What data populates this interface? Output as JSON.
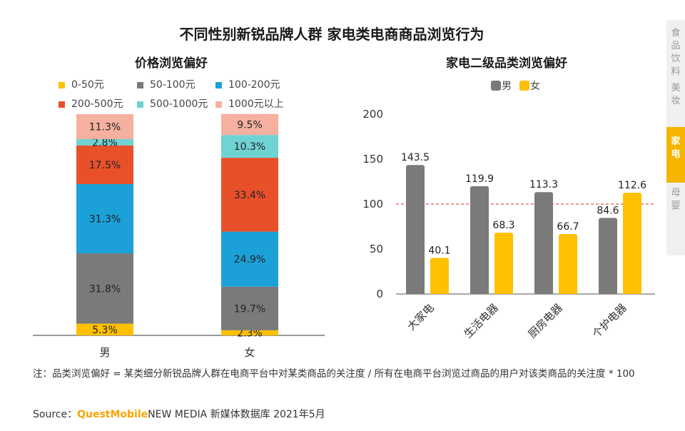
{
  "title": "不同性别新锐品牌人群 家电类电商商品浏览行为",
  "sidebar": {
    "tabs": [
      {
        "label": "食\n品\n饮\n料",
        "active": false
      },
      {
        "label": "美\n妆",
        "active": false
      },
      {
        "label": "家\n电",
        "active": true
      },
      {
        "label": "母\n婴",
        "active": false
      }
    ]
  },
  "colors": {
    "yellow": "#FFC000",
    "gray": "#7a7a7a",
    "blue": "#1ba0d8",
    "red": "#e8502a",
    "teal": "#6fd3d3",
    "pink": "#f6b0a0",
    "ref_line": "#d32f2f",
    "accent": "#f5a500"
  },
  "chart_data": [
    {
      "type": "bar",
      "stacked": true,
      "percent": true,
      "title": "价格浏览偏好",
      "categories": [
        "男",
        "女"
      ],
      "legend": [
        "0-50元",
        "50-100元",
        "100-200元",
        "200-500元",
        "500-1000元",
        "1000元以上"
      ],
      "series": [
        {
          "name": "0-50元",
          "color": "#FFC000",
          "values": [
            5.3,
            2.3
          ],
          "labels": [
            "5.3%",
            "2.3%"
          ]
        },
        {
          "name": "50-100元",
          "color": "#7a7a7a",
          "values": [
            31.8,
            19.7
          ],
          "labels": [
            "31.8%",
            "19.7%"
          ]
        },
        {
          "name": "100-200元",
          "color": "#1ba0d8",
          "values": [
            31.3,
            24.9
          ],
          "labels": [
            "31.3%",
            "24.9%"
          ]
        },
        {
          "name": "200-500元",
          "color": "#e8502a",
          "values": [
            17.5,
            33.4
          ],
          "labels": [
            "17.5%",
            "33.4%"
          ]
        },
        {
          "name": "500-1000元",
          "color": "#6fd3d3",
          "values": [
            2.8,
            10.3
          ],
          "labels": [
            "2.8%",
            "10.3%"
          ]
        },
        {
          "name": "1000元以上",
          "color": "#f6b0a0",
          "values": [
            11.3,
            9.5
          ],
          "labels": [
            "11.3%",
            "9.5%"
          ]
        }
      ],
      "ylim": [
        0,
        100
      ]
    },
    {
      "type": "bar",
      "title": "家电二级品类浏览偏好",
      "categories": [
        "大家电",
        "生活电器",
        "厨房电器",
        "个护电器"
      ],
      "legend": [
        "男",
        "女"
      ],
      "series": [
        {
          "name": "男",
          "color": "#7a7a7a",
          "values": [
            143.5,
            119.9,
            113.3,
            84.6
          ],
          "labels": [
            "143.5",
            "119.9",
            "113.3",
            "84.6"
          ]
        },
        {
          "name": "女",
          "color": "#FFC000",
          "values": [
            40.1,
            68.3,
            66.7,
            112.6
          ],
          "labels": [
            "40.1",
            "68.3",
            "66.7",
            "112.6"
          ]
        }
      ],
      "ylim": [
        0,
        200
      ],
      "yticks": [
        "0",
        "50",
        "100",
        "150",
        "200"
      ],
      "reference_line": 100
    }
  ],
  "footnote": "注：品类浏览偏好 = 某类细分新锐品牌人群在电商平台中对某类商品的关注度 / 所有在电商平台浏览过商品的用户对该类商品的关注度 * 100",
  "source": {
    "prefix": "Source：",
    "brand": "QuestMobile",
    "rest": "NEW MEDIA 新媒体数据库 2021年5月"
  }
}
